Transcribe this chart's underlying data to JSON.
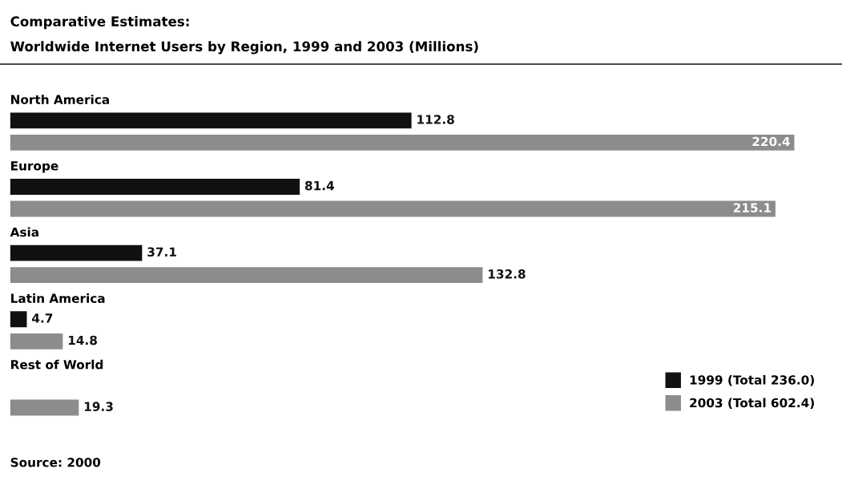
{
  "chart_data": {
    "type": "bar",
    "orientation": "horizontal",
    "title": "Comparative Estimates:",
    "subtitle": "Worldwide Internet Users by Region, 1999 and 2003 (Millions)",
    "categories": [
      "North America",
      "Europe",
      "Asia",
      "Latin America",
      "Rest of World"
    ],
    "series": [
      {
        "name": "1999 (Total 236.0)",
        "color": "#111111",
        "values": [
          112.8,
          81.4,
          37.1,
          4.7,
          null
        ]
      },
      {
        "name": "2003 (Total 602.4)",
        "color": "#8c8c8c",
        "values": [
          220.4,
          215.1,
          132.8,
          14.8,
          19.3
        ]
      }
    ],
    "data_labels": true,
    "legend": "bottom right",
    "tick_labels": false,
    "annotations": [
      "Source: 2000"
    ]
  }
}
